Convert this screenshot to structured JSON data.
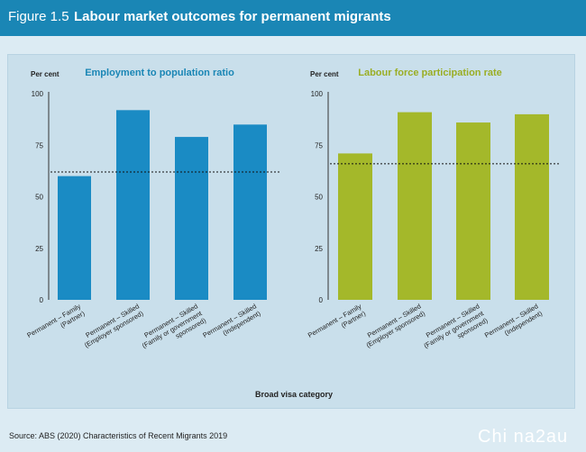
{
  "figure": {
    "label": "Figure 1.5",
    "title": "Labour market outcomes for permanent migrants",
    "x_axis_title": "Broad visa category",
    "source": "Source: ABS (2020) Characteristics of Recent Migrants 2019",
    "watermark": "Chi na2au"
  },
  "colors": {
    "header": "#1a86b5",
    "blue_bar": "#1a8bc4",
    "green_bar": "#a4b82a",
    "blue_title": "#1a86b5",
    "green_title": "#9aae25"
  },
  "chart_data": [
    {
      "type": "bar",
      "title": "Employment to population ratio",
      "ylabel": "Per cent",
      "ylim": [
        0,
        100
      ],
      "yticks": [
        0,
        25,
        50,
        75,
        100
      ],
      "categories": [
        "Permanent – Family (Partner)",
        "Permanent – Skilled (Employer sponsored)",
        "Permanent – Skilled (Family or government sponsored)",
        "Permanent – Skilled (Independent)"
      ],
      "values": [
        60,
        92,
        79,
        85
      ],
      "reference_line": 62,
      "grid": false
    },
    {
      "type": "bar",
      "title": "Labour force participation rate",
      "ylabel": "Per cent",
      "ylim": [
        0,
        100
      ],
      "yticks": [
        0,
        25,
        50,
        75,
        100
      ],
      "categories": [
        "Permanent – Family (Partner)",
        "Permanent – Skilled (Employer sponsored)",
        "Permanent – Skilled (Family or government sponsored)",
        "Permanent – Skilled (Independent)"
      ],
      "values": [
        71,
        91,
        86,
        90
      ],
      "reference_line": 66,
      "grid": false
    }
  ]
}
